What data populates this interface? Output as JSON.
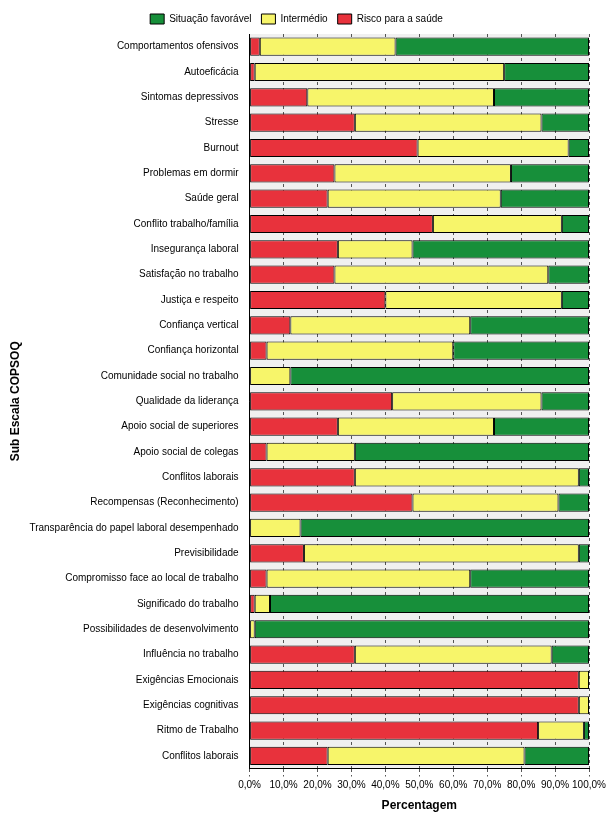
{
  "chart_data": {
    "type": "bar",
    "orientation": "horizontal",
    "stacked": true,
    "grid": true,
    "legend": "top",
    "xlabel": "Percentagem",
    "ylabel": "Sub Escala COPSOQ",
    "categories": [
      "Comportamentos ofensivos",
      "Autoeficácia",
      "Sintomas depressivos",
      "Stresse",
      "Burnout",
      "Problemas em dormir",
      "Saúde geral",
      "Conflito trabalho/família",
      "Insegurança laboral",
      "Satisfação no trabalho",
      "Justiça e respeito",
      "Confiança vertical",
      "Confiança horizontal",
      "Comunidade social no trabalho",
      "Qualidade da liderança",
      "Apoio social de superiores",
      "Apoio social de colegas",
      "Conflitos laborais",
      "Recompensas (Reconhecimento)",
      "Transparência do papel laboral desempenhado",
      "Previsibilidade",
      "Compromisso face ao local de trabalho",
      "Significado do trabalho",
      "Possibilidades de desenvolvimento",
      "Influência no trabalho",
      "Exigências Emocionais",
      "Exigências cognitivas",
      "Ritmo de Trabalho",
      "Conflitos laborais"
    ],
    "series": [
      {
        "name": "Risco para a saúde",
        "color": "#e8323c",
        "values": [
          3,
          1.5,
          17,
          31,
          49.5,
          25,
          23,
          54,
          26,
          25,
          40,
          12,
          5,
          0,
          42,
          26,
          5,
          31,
          48,
          0,
          16,
          5,
          1.5,
          0,
          31,
          97,
          97,
          85,
          23
        ]
      },
      {
        "name": "Intermédio",
        "color": "#f7f56a",
        "values": [
          40,
          73.5,
          55,
          55,
          44.5,
          52,
          51,
          38,
          22,
          63,
          52,
          53,
          55,
          12,
          44,
          46,
          26,
          66,
          43,
          15,
          81,
          60,
          4.5,
          1.5,
          58,
          3,
          3,
          13.5,
          58
        ]
      },
      {
        "name": "Situação favorável",
        "color": "#178f3a",
        "values": [
          57,
          25,
          28,
          14,
          6,
          23,
          26,
          8,
          52,
          12,
          8,
          35,
          40,
          88,
          14,
          28,
          69,
          3,
          9,
          85,
          3,
          35,
          94,
          98.5,
          11,
          0,
          0,
          1.5,
          19
        ]
      }
    ],
    "xlim": [
      0,
      100
    ],
    "xticks": [
      {
        "value": 0,
        "label": "0,0%"
      },
      {
        "value": 10,
        "label": "10,0%"
      },
      {
        "value": 20,
        "label": "20,0%"
      },
      {
        "value": 30,
        "label": "30,0%"
      },
      {
        "value": 40,
        "label": "40,0%"
      },
      {
        "value": 50,
        "label": "50,0%"
      },
      {
        "value": 60,
        "label": "60,0%"
      },
      {
        "value": 70,
        "label": "70,0%"
      },
      {
        "value": 80,
        "label": "80,0%"
      },
      {
        "value": 90,
        "label": "90,0%"
      },
      {
        "value": 100,
        "label": "100,0%"
      }
    ]
  }
}
